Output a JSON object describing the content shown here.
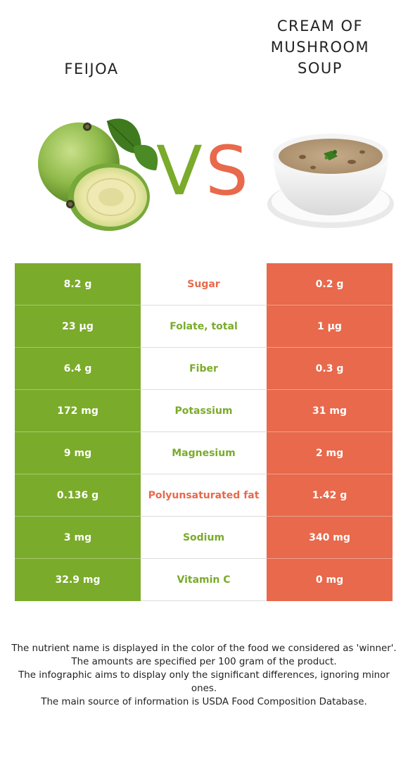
{
  "foods": {
    "left": {
      "name": "FEIJOA",
      "color": "#7aab2a",
      "image_icon": "feijoa-fruit-image"
    },
    "right": {
      "name_lines": [
        "CREAM OF",
        "MUSHROOM",
        "SOUP"
      ],
      "color": "#e8694b",
      "image_icon": "mushroom-soup-bowl-image"
    }
  },
  "vs": {
    "v": "V",
    "s": "S"
  },
  "nutrients": [
    {
      "name": "Sugar",
      "left": "8.2 g",
      "right": "0.2 g",
      "winner": "right"
    },
    {
      "name": "Folate, total",
      "left": "23 µg",
      "right": "1 µg",
      "winner": "left"
    },
    {
      "name": "Fiber",
      "left": "6.4 g",
      "right": "0.3 g",
      "winner": "left"
    },
    {
      "name": "Potassium",
      "left": "172 mg",
      "right": "31 mg",
      "winner": "left"
    },
    {
      "name": "Magnesium",
      "left": "9 mg",
      "right": "2 mg",
      "winner": "left"
    },
    {
      "name": "Polyunsaturated fat",
      "left": "0.136 g",
      "right": "1.42 g",
      "winner": "right"
    },
    {
      "name": "Sodium",
      "left": "3 mg",
      "right": "340 mg",
      "winner": "left"
    },
    {
      "name": "Vitamin C",
      "left": "32.9 mg",
      "right": "0 mg",
      "winner": "left"
    }
  ],
  "notes": [
    "The nutrient name is displayed in the color of the food we considered as 'winner'.",
    "The amounts are specified per 100 gram of the product.",
    "The infographic aims to display only the significant differences, ignoring minor ones.",
    "The main source of information is USDA Food Composition Database."
  ]
}
